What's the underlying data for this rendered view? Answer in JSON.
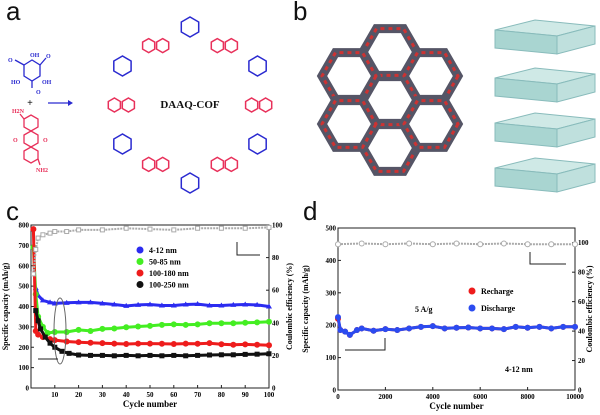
{
  "panels": {
    "a": "a",
    "b": "b",
    "c": "c",
    "d": "d"
  },
  "scheme": {
    "product": "DAAQ-COF",
    "plus": "+",
    "reactant1_labels": [
      "OH",
      "OH",
      "HO",
      "O",
      "O",
      "O"
    ],
    "reactant2_labels": [
      "H2N",
      "NH2",
      "O",
      "O"
    ],
    "colors": {
      "aldehyde": "#2a2ad0",
      "amine": "#e8305a"
    }
  },
  "chart_data": [
    {
      "type": "scatter",
      "panel": "c",
      "xlabel": "Cycle number",
      "ylabel": "Specific capacity (mAh/g)",
      "y2label": "Coulombic efficiency (%)",
      "xlim": [
        0,
        100
      ],
      "ylim": [
        0,
        800
      ],
      "y2lim": [
        0,
        100
      ],
      "xticks": [
        10,
        20,
        30,
        40,
        50,
        60,
        70,
        80,
        90,
        100
      ],
      "yticks": [
        0,
        100,
        200,
        300,
        400,
        500,
        600,
        700,
        800
      ],
      "y2ticks": [
        0,
        20,
        40,
        60,
        80,
        100
      ],
      "legend": "top-center",
      "series": [
        {
          "name": "4-12 nm",
          "color": "#2b2bf0",
          "marker": "triangle",
          "x": [
            2,
            3,
            5,
            8,
            10,
            15,
            20,
            25,
            30,
            35,
            40,
            45,
            50,
            55,
            60,
            65,
            70,
            75,
            80,
            85,
            90,
            95,
            100
          ],
          "y": [
            490,
            455,
            430,
            420,
            415,
            418,
            420,
            420,
            415,
            410,
            403,
            408,
            410,
            405,
            405,
            410,
            412,
            405,
            405,
            408,
            410,
            408,
            400
          ]
        },
        {
          "name": "50-85 nm",
          "color": "#44ee22",
          "marker": "circle",
          "x": [
            1,
            2,
            3,
            5,
            7,
            10,
            15,
            20,
            25,
            30,
            35,
            40,
            45,
            50,
            55,
            60,
            65,
            70,
            75,
            80,
            85,
            90,
            95,
            100
          ],
          "y": [
            690,
            460,
            350,
            300,
            270,
            275,
            275,
            285,
            280,
            290,
            292,
            298,
            302,
            305,
            310,
            312,
            310,
            312,
            318,
            318,
            318,
            320,
            322,
            325
          ]
        },
        {
          "name": "100-180 nm",
          "color": "#ee1c1c",
          "marker": "hexagon",
          "x": [
            1,
            2,
            3,
            5,
            8,
            10,
            15,
            20,
            25,
            30,
            35,
            40,
            45,
            50,
            55,
            60,
            65,
            70,
            75,
            80,
            85,
            90,
            95,
            100
          ],
          "y": [
            780,
            280,
            262,
            250,
            240,
            235,
            228,
            225,
            222,
            220,
            218,
            216,
            218,
            218,
            217,
            216,
            218,
            217,
            220,
            215,
            212,
            214,
            212,
            210
          ]
        },
        {
          "name": "100-250 nm",
          "color": "#111111",
          "marker": "square",
          "x": [
            2,
            3,
            4,
            6,
            8,
            10,
            13,
            16,
            20,
            25,
            30,
            35,
            40,
            45,
            50,
            55,
            60,
            65,
            70,
            75,
            80,
            85,
            90,
            95,
            100
          ],
          "y": [
            380,
            330,
            290,
            250,
            220,
            200,
            180,
            170,
            162,
            160,
            160,
            158,
            160,
            158,
            160,
            158,
            160,
            158,
            160,
            162,
            163,
            163,
            165,
            166,
            168
          ]
        },
        {
          "name": "",
          "axis": "right",
          "color": "#aaaaaa",
          "marker": "open-square",
          "x": [
            1,
            2,
            3,
            5,
            8,
            10,
            15,
            20,
            30,
            40,
            50,
            60,
            70,
            80,
            90,
            100
          ],
          "y": [
            70,
            85,
            92,
            94,
            95,
            96,
            96,
            97,
            97,
            98,
            97.5,
            97,
            98,
            98,
            98,
            98.5
          ]
        }
      ]
    },
    {
      "type": "scatter",
      "panel": "d",
      "xlabel": "Cycle number",
      "ylabel": "Specific capacity (mAh/g)",
      "y2label": "Coulombic efficiency (%)",
      "xlim": [
        0,
        10000
      ],
      "ylim": [
        0,
        500
      ],
      "y2lim": [
        0,
        110
      ],
      "xticks": [
        0,
        2000,
        4000,
        6000,
        8000,
        10000
      ],
      "yticks": [
        0,
        100,
        200,
        300,
        400,
        500
      ],
      "y2ticks": [
        0,
        20,
        40,
        60,
        80,
        100
      ],
      "legend": "center-right",
      "annotations": [
        "5 A/g",
        "4-12 nm"
      ],
      "series": [
        {
          "name": "Recharge",
          "color": "#ee1c1c",
          "x": [
            0,
            100,
            300,
            500,
            800,
            1000,
            1500,
            2000,
            2500,
            3000,
            3500,
            4000,
            4500,
            5000,
            5500,
            6000,
            6500,
            7000,
            7500,
            8000,
            8500,
            9000,
            9500,
            10000
          ],
          "y": [
            220,
            185,
            180,
            170,
            185,
            190,
            183,
            188,
            185,
            190,
            195,
            197,
            190,
            192,
            193,
            190,
            190,
            188,
            195,
            192,
            195,
            190,
            195,
            195
          ]
        },
        {
          "name": "Discharge",
          "color": "#2b4bf0",
          "x": [
            0,
            100,
            300,
            500,
            800,
            1000,
            1500,
            2000,
            2500,
            3000,
            3500,
            4000,
            4500,
            5000,
            5500,
            6000,
            6500,
            7000,
            7500,
            8000,
            8500,
            9000,
            9500,
            10000
          ],
          "y": [
            225,
            185,
            180,
            170,
            185,
            190,
            183,
            188,
            185,
            190,
            195,
            197,
            190,
            192,
            193,
            190,
            190,
            188,
            195,
            192,
            195,
            190,
            195,
            195
          ]
        },
        {
          "name": "",
          "axis": "right",
          "color": "#aaaaaa",
          "marker": "open-circle",
          "x": [
            0,
            1000,
            2000,
            3000,
            4000,
            5000,
            6000,
            7000,
            8000,
            9000,
            10000
          ],
          "y": [
            99,
            99.5,
            99,
            99.5,
            99,
            99.5,
            99,
            99.5,
            99,
            99,
            99
          ]
        }
      ]
    }
  ]
}
